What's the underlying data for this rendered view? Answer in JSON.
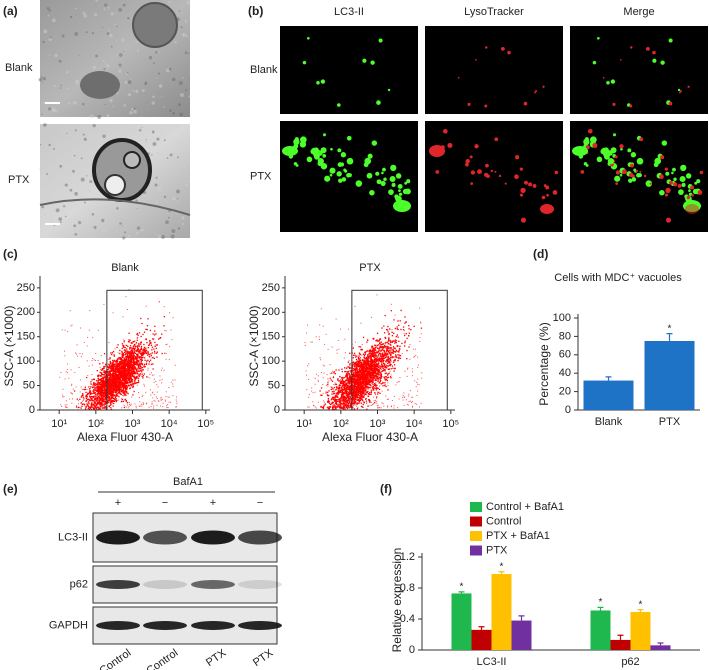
{
  "panel_a": {
    "label": "(a)",
    "rows": [
      "Blank",
      "PTX"
    ]
  },
  "panel_b": {
    "label": "(b)",
    "columns": [
      "LC3-II",
      "LysoTracker",
      "Merge"
    ],
    "rows": [
      "Blank",
      "PTX"
    ]
  },
  "panel_c": {
    "label": "(c)",
    "plots": [
      {
        "title": "Blank"
      },
      {
        "title": "PTX"
      }
    ],
    "xlabel": "Alexa Fluor 430-A",
    "ylabel": "SSC-A (×1000)",
    "log_x": true,
    "xlim": [
      3,
      130000
    ],
    "ylim": [
      0,
      262
    ],
    "xticks": [
      {
        "value": 10,
        "label": "10¹"
      },
      {
        "value": 100,
        "label": "10²"
      },
      {
        "value": 1000,
        "label": "10³"
      },
      {
        "value": 10000,
        "label": "10⁴"
      },
      {
        "value": 100000,
        "label": "10⁵"
      }
    ],
    "yticks": [
      0,
      50,
      100,
      150,
      200,
      250
    ],
    "gate": {
      "x": [
        200,
        80000
      ],
      "y": [
        0,
        245
      ]
    },
    "dot_color": "#ff0000"
  },
  "panel_d": {
    "label": "(d)",
    "chart": {
      "type": "bar",
      "title": "Cells with MDC⁺ vacuoles",
      "ylabel": "Percentage (%)",
      "categories": [
        "Blank",
        "PTX"
      ],
      "values": [
        32,
        75
      ],
      "errors": [
        4,
        8
      ],
      "significance": [
        null,
        "*"
      ],
      "color": "#1f73c6",
      "ylim": [
        0,
        100
      ],
      "yticks": [
        0,
        20,
        40,
        60,
        80,
        100
      ]
    }
  },
  "panel_e": {
    "label": "(e)",
    "treatment": "BafA1",
    "signs": [
      "+",
      "−",
      "+",
      "−"
    ],
    "rows": [
      "LC3-II",
      "p62",
      "GAPDH"
    ],
    "lanes": [
      "Control",
      "Control",
      "PTX",
      "PTX"
    ]
  },
  "panel_f": {
    "label": "(f)",
    "chart": {
      "type": "bar",
      "ylabel": "Relative expression",
      "categories": [
        "LC3-II",
        "p62"
      ],
      "ylim": [
        0,
        1.2
      ],
      "yticks": [
        0,
        0.4,
        0.8,
        1.2
      ],
      "series": [
        {
          "name": "Control + BafA1",
          "color": "#1fb84f",
          "values": [
            0.73,
            0.51
          ],
          "errors": [
            0.02,
            0.04
          ],
          "significance": [
            "*",
            "*"
          ]
        },
        {
          "name": "Control",
          "color": "#c00000",
          "values": [
            0.26,
            0.13
          ],
          "errors": [
            0.04,
            0.06
          ],
          "significance": [
            null,
            null
          ]
        },
        {
          "name": "PTX + BafA1",
          "color": "#ffc000",
          "values": [
            0.98,
            0.49
          ],
          "errors": [
            0.03,
            0.03
          ],
          "significance": [
            "*",
            "*"
          ]
        },
        {
          "name": "PTX",
          "color": "#7030a0",
          "values": [
            0.38,
            0.06
          ],
          "errors": [
            0.06,
            0.03
          ],
          "significance": [
            null,
            null
          ]
        }
      ]
    }
  }
}
